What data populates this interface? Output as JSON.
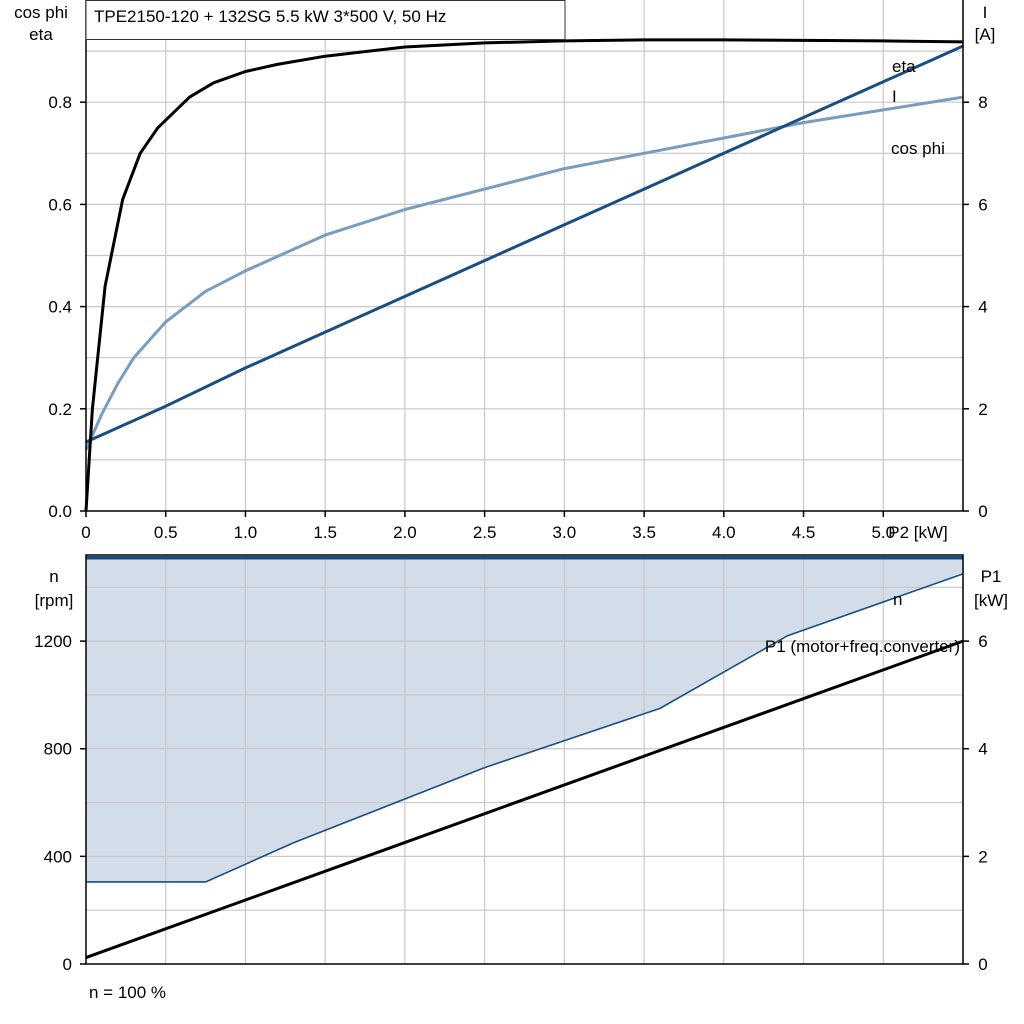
{
  "title": "TPE2150-120 + 132SG   5.5 kW   3*500 V, 50 Hz",
  "footer": "n = 100 %",
  "colors": {
    "eta": "#000000",
    "I": "#1a4d80",
    "cos_phi": "#7a9cbd",
    "n": "#1a4d80",
    "n_fill": "#d2dde9",
    "P1": "#000000",
    "grid": "#c8c8c8"
  },
  "chart_data": [
    {
      "type": "line",
      "xlabel": "P2 [kW]",
      "ylabel_left": [
        "cos phi",
        "eta"
      ],
      "ylabel_right": [
        "I",
        "[A]"
      ],
      "xlim": [
        0,
        5.5
      ],
      "ylim_left": [
        0,
        1.0
      ],
      "ylim_right": [
        0,
        10
      ],
      "x_ticks": [
        "0",
        "0.5",
        "1.0",
        "1.5",
        "2.0",
        "2.5",
        "3.0",
        "3.5",
        "4.0",
        "4.5",
        "5.0"
      ],
      "x_tick_values": [
        0,
        0.5,
        1.0,
        1.5,
        2.0,
        2.5,
        3.0,
        3.5,
        4.0,
        4.5,
        5.0
      ],
      "y_left_ticks": [
        "0.0",
        "0.2",
        "0.4",
        "0.6",
        "0.8"
      ],
      "y_left_tick_values": [
        0,
        0.2,
        0.4,
        0.6,
        0.8
      ],
      "y_right_ticks": [
        "0",
        "2",
        "4",
        "6",
        "8"
      ],
      "y_right_tick_values": [
        0,
        2,
        4,
        6,
        8
      ],
      "grid": true,
      "series": [
        {
          "name": "eta",
          "axis": "left",
          "x": [
            0,
            0.04,
            0.12,
            0.23,
            0.34,
            0.45,
            0.55,
            0.65,
            0.8,
            1.0,
            1.2,
            1.5,
            2.0,
            2.5,
            3.0,
            3.5,
            4.0,
            4.5,
            5.0,
            5.5
          ],
          "y": [
            0.0,
            0.2,
            0.44,
            0.61,
            0.7,
            0.75,
            0.78,
            0.81,
            0.838,
            0.86,
            0.874,
            0.89,
            0.908,
            0.916,
            0.92,
            0.922,
            0.922,
            0.921,
            0.92,
            0.918
          ]
        },
        {
          "name": "I",
          "axis": "right",
          "x": [
            0,
            0.5,
            1.0,
            1.5,
            2.0,
            2.5,
            3.0,
            3.5,
            4.0,
            4.5,
            5.0,
            5.5
          ],
          "y": [
            1.35,
            2.05,
            2.8,
            3.5,
            4.2,
            4.9,
            5.6,
            6.3,
            7.0,
            7.7,
            8.4,
            9.1
          ]
        },
        {
          "name": "cos phi",
          "axis": "left",
          "x": [
            0,
            0.1,
            0.2,
            0.3,
            0.5,
            0.75,
            1.0,
            1.5,
            2.0,
            2.5,
            3.0,
            3.5,
            4.0,
            4.5,
            5.0,
            5.5
          ],
          "y": [
            0.12,
            0.19,
            0.25,
            0.3,
            0.37,
            0.43,
            0.47,
            0.54,
            0.59,
            0.63,
            0.67,
            0.7,
            0.73,
            0.76,
            0.785,
            0.81
          ]
        }
      ]
    },
    {
      "type": "line",
      "xlim": [
        0,
        5.5
      ],
      "ylabel_left": [
        "n",
        "[rpm]"
      ],
      "ylabel_right": [
        "P1",
        "[kW]"
      ],
      "ylim_left": [
        0,
        1520
      ],
      "ylim_right": [
        0,
        7.6
      ],
      "y_left_ticks": [
        "0",
        "400",
        "800",
        "1200"
      ],
      "y_left_tick_values": [
        0,
        400,
        800,
        1200
      ],
      "y_right_ticks": [
        "0",
        "2",
        "4",
        "6"
      ],
      "y_right_tick_values": [
        0,
        2,
        4,
        6
      ],
      "grid": true,
      "series": [
        {
          "name": "n",
          "axis": "left",
          "x": [
            0,
            5.5
          ],
          "y": [
            1510,
            1510
          ]
        },
        {
          "name": "n",
          "axis": "left",
          "x": [
            0,
            0.75,
            1.3,
            2.5,
            3.6,
            4.4,
            5.5
          ],
          "y": [
            305,
            305,
            450,
            730,
            950,
            1220,
            1450
          ]
        },
        {
          "name": "P1 (motor+freq.converter)",
          "axis": "right",
          "x": [
            0,
            5.5
          ],
          "y": [
            0.12,
            6.0
          ]
        }
      ]
    }
  ]
}
